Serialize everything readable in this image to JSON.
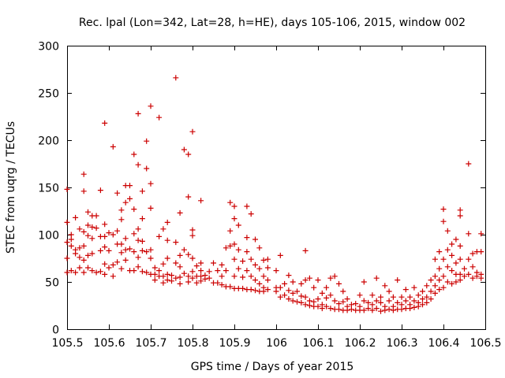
{
  "chart_data": {
    "type": "scatter",
    "title": "Rec. lpal (Lon=342, Lat=28, h=HE), days 105-106, 2015, window 002",
    "xlabel": "GPS time / Days of year 2015",
    "ylabel": "STEC from uqrg / TECUs",
    "xlim": [
      105.5,
      106.5
    ],
    "ylim": [
      0,
      300
    ],
    "xticks": [
      105.5,
      105.6,
      105.7,
      105.8,
      105.9,
      106,
      106.1,
      106.2,
      106.3,
      106.4,
      106.5
    ],
    "xtick_labels": [
      "105.5",
      "105.6",
      "105.7",
      "105.8",
      "105.9",
      "106",
      "106.1",
      "106.2",
      "106.3",
      "106.4",
      "106.5"
    ],
    "yticks": [
      0,
      50,
      100,
      150,
      200,
      250,
      300
    ],
    "ytick_labels": [
      "0",
      "50",
      "100",
      "150",
      "200",
      "250",
      "300"
    ],
    "grid": false,
    "marker": "+",
    "marker_color": "#cc0000",
    "points": [
      [
        105.5,
        148
      ],
      [
        105.5,
        113
      ],
      [
        105.5,
        92
      ],
      [
        105.5,
        75
      ],
      [
        105.5,
        60
      ],
      [
        105.51,
        100
      ],
      [
        105.51,
        95
      ],
      [
        105.51,
        88
      ],
      [
        105.51,
        62
      ],
      [
        105.52,
        118
      ],
      [
        105.52,
        84
      ],
      [
        105.52,
        80
      ],
      [
        105.52,
        60
      ],
      [
        105.53,
        106
      ],
      [
        105.53,
        86
      ],
      [
        105.53,
        76
      ],
      [
        105.53,
        65
      ],
      [
        105.54,
        164
      ],
      [
        105.54,
        146
      ],
      [
        105.54,
        103
      ],
      [
        105.54,
        88
      ],
      [
        105.54,
        73
      ],
      [
        105.54,
        60
      ],
      [
        105.55,
        124
      ],
      [
        105.55,
        110
      ],
      [
        105.55,
        99
      ],
      [
        105.55,
        78
      ],
      [
        105.55,
        65
      ],
      [
        105.56,
        120
      ],
      [
        105.56,
        108
      ],
      [
        105.56,
        96
      ],
      [
        105.56,
        80
      ],
      [
        105.56,
        62
      ],
      [
        105.57,
        120
      ],
      [
        105.57,
        107
      ],
      [
        105.57,
        60
      ],
      [
        105.58,
        147
      ],
      [
        105.58,
        98
      ],
      [
        105.58,
        83
      ],
      [
        105.58,
        61
      ],
      [
        105.59,
        218
      ],
      [
        105.59,
        111
      ],
      [
        105.59,
        98
      ],
      [
        105.59,
        87
      ],
      [
        105.59,
        69
      ],
      [
        105.59,
        58
      ],
      [
        105.6,
        102
      ],
      [
        105.6,
        83
      ],
      [
        105.6,
        65
      ],
      [
        105.61,
        193
      ],
      [
        105.61,
        100
      ],
      [
        105.61,
        68
      ],
      [
        105.61,
        56
      ],
      [
        105.62,
        144
      ],
      [
        105.62,
        104
      ],
      [
        105.62,
        90
      ],
      [
        105.62,
        71
      ],
      [
        105.63,
        126
      ],
      [
        105.63,
        116
      ],
      [
        105.63,
        90
      ],
      [
        105.63,
        81
      ],
      [
        105.63,
        64
      ],
      [
        105.64,
        152
      ],
      [
        105.64,
        134
      ],
      [
        105.64,
        96
      ],
      [
        105.64,
        84
      ],
      [
        105.64,
        73
      ],
      [
        105.65,
        152
      ],
      [
        105.65,
        138
      ],
      [
        105.65,
        85
      ],
      [
        105.65,
        62
      ],
      [
        105.66,
        185
      ],
      [
        105.66,
        127
      ],
      [
        105.66,
        101
      ],
      [
        105.66,
        82
      ],
      [
        105.66,
        62
      ],
      [
        105.67,
        228
      ],
      [
        105.67,
        174
      ],
      [
        105.67,
        106
      ],
      [
        105.67,
        94
      ],
      [
        105.67,
        76
      ],
      [
        105.67,
        66
      ],
      [
        105.68,
        146
      ],
      [
        105.68,
        117
      ],
      [
        105.68,
        93
      ],
      [
        105.68,
        83
      ],
      [
        105.68,
        61
      ],
      [
        105.69,
        199
      ],
      [
        105.69,
        170
      ],
      [
        105.69,
        82
      ],
      [
        105.69,
        60
      ],
      [
        105.7,
        236
      ],
      [
        105.7,
        154
      ],
      [
        105.7,
        128
      ],
      [
        105.7,
        84
      ],
      [
        105.7,
        75
      ],
      [
        105.7,
        58
      ],
      [
        105.71,
        65
      ],
      [
        105.71,
        58
      ],
      [
        105.71,
        52
      ],
      [
        105.72,
        224
      ],
      [
        105.72,
        98
      ],
      [
        105.72,
        62
      ],
      [
        105.72,
        56
      ],
      [
        105.73,
        106
      ],
      [
        105.73,
        69
      ],
      [
        105.73,
        56
      ],
      [
        105.73,
        49
      ],
      [
        105.74,
        113
      ],
      [
        105.74,
        94
      ],
      [
        105.74,
        75
      ],
      [
        105.74,
        58
      ],
      [
        105.74,
        52
      ],
      [
        105.75,
        57
      ],
      [
        105.75,
        51
      ],
      [
        105.76,
        266
      ],
      [
        105.76,
        92
      ],
      [
        105.76,
        70
      ],
      [
        105.76,
        54
      ],
      [
        105.77,
        123
      ],
      [
        105.77,
        78
      ],
      [
        105.77,
        66
      ],
      [
        105.77,
        55
      ],
      [
        105.77,
        48
      ],
      [
        105.78,
        190
      ],
      [
        105.78,
        84
      ],
      [
        105.78,
        59
      ],
      [
        105.79,
        185
      ],
      [
        105.79,
        140
      ],
      [
        105.79,
        79
      ],
      [
        105.79,
        56
      ],
      [
        105.79,
        50
      ],
      [
        105.8,
        209
      ],
      [
        105.8,
        105
      ],
      [
        105.8,
        99
      ],
      [
        105.8,
        75
      ],
      [
        105.8,
        61
      ],
      [
        105.8,
        54
      ],
      [
        105.81,
        67
      ],
      [
        105.81,
        56
      ],
      [
        105.81,
        49
      ],
      [
        105.82,
        136
      ],
      [
        105.82,
        70
      ],
      [
        105.82,
        62
      ],
      [
        105.82,
        56
      ],
      [
        105.82,
        51
      ],
      [
        105.83,
        57
      ],
      [
        105.83,
        53
      ],
      [
        105.84,
        61
      ],
      [
        105.84,
        54
      ],
      [
        105.85,
        70
      ],
      [
        105.85,
        49
      ],
      [
        105.86,
        62
      ],
      [
        105.86,
        49
      ],
      [
        105.87,
        68
      ],
      [
        105.87,
        56
      ],
      [
        105.87,
        47
      ],
      [
        105.88,
        86
      ],
      [
        105.88,
        62
      ],
      [
        105.88,
        45
      ],
      [
        105.89,
        134
      ],
      [
        105.89,
        104
      ],
      [
        105.89,
        88
      ],
      [
        105.89,
        45
      ],
      [
        105.9,
        130
      ],
      [
        105.9,
        117
      ],
      [
        105.9,
        90
      ],
      [
        105.9,
        74
      ],
      [
        105.9,
        56
      ],
      [
        105.9,
        43
      ],
      [
        105.91,
        110
      ],
      [
        105.91,
        84
      ],
      [
        105.91,
        64
      ],
      [
        105.91,
        43
      ],
      [
        105.92,
        72
      ],
      [
        105.92,
        55
      ],
      [
        105.92,
        43
      ],
      [
        105.93,
        130
      ],
      [
        105.93,
        97
      ],
      [
        105.93,
        82
      ],
      [
        105.93,
        62
      ],
      [
        105.93,
        42
      ],
      [
        105.94,
        122
      ],
      [
        105.94,
        74
      ],
      [
        105.94,
        56
      ],
      [
        105.94,
        42
      ],
      [
        105.95,
        95
      ],
      [
        105.95,
        68
      ],
      [
        105.95,
        52
      ],
      [
        105.95,
        41
      ],
      [
        105.96,
        86
      ],
      [
        105.96,
        64
      ],
      [
        105.96,
        48
      ],
      [
        105.96,
        40
      ],
      [
        105.97,
        73
      ],
      [
        105.97,
        56
      ],
      [
        105.97,
        44
      ],
      [
        105.97,
        40
      ],
      [
        105.98,
        74
      ],
      [
        105.98,
        65
      ],
      [
        105.98,
        52
      ],
      [
        105.98,
        42
      ],
      [
        106.0,
        62
      ],
      [
        106.0,
        44
      ],
      [
        106.0,
        40
      ],
      [
        106.01,
        78
      ],
      [
        106.01,
        44
      ],
      [
        106.01,
        34
      ],
      [
        106.02,
        48
      ],
      [
        106.02,
        36
      ],
      [
        106.03,
        57
      ],
      [
        106.03,
        41
      ],
      [
        106.03,
        32
      ],
      [
        106.04,
        50
      ],
      [
        106.04,
        38
      ],
      [
        106.04,
        30
      ],
      [
        106.05,
        40
      ],
      [
        106.05,
        29
      ],
      [
        106.06,
        48
      ],
      [
        106.06,
        35
      ],
      [
        106.06,
        28
      ],
      [
        106.07,
        83
      ],
      [
        106.07,
        52
      ],
      [
        106.07,
        34
      ],
      [
        106.07,
        26
      ],
      [
        106.08,
        54
      ],
      [
        106.08,
        30
      ],
      [
        106.08,
        25
      ],
      [
        106.09,
        44
      ],
      [
        106.09,
        29
      ],
      [
        106.09,
        24
      ],
      [
        106.1,
        52
      ],
      [
        106.1,
        32
      ],
      [
        106.1,
        24
      ],
      [
        106.11,
        38
      ],
      [
        106.11,
        26
      ],
      [
        106.11,
        22
      ],
      [
        106.12,
        44
      ],
      [
        106.12,
        33
      ],
      [
        106.12,
        24
      ],
      [
        106.13,
        54
      ],
      [
        106.13,
        36
      ],
      [
        106.13,
        22
      ],
      [
        106.14,
        56
      ],
      [
        106.14,
        30
      ],
      [
        106.14,
        21
      ],
      [
        106.15,
        48
      ],
      [
        106.15,
        27
      ],
      [
        106.15,
        21
      ],
      [
        106.16,
        40
      ],
      [
        106.16,
        29
      ],
      [
        106.16,
        20
      ],
      [
        106.17,
        32
      ],
      [
        106.17,
        24
      ],
      [
        106.17,
        20
      ],
      [
        106.18,
        26
      ],
      [
        106.18,
        21
      ],
      [
        106.19,
        27
      ],
      [
        106.19,
        20
      ],
      [
        106.2,
        36
      ],
      [
        106.2,
        24
      ],
      [
        106.2,
        20
      ],
      [
        106.21,
        50
      ],
      [
        106.21,
        30
      ],
      [
        106.21,
        20
      ],
      [
        106.22,
        28
      ],
      [
        106.22,
        22
      ],
      [
        106.23,
        36
      ],
      [
        106.23,
        26
      ],
      [
        106.23,
        20
      ],
      [
        106.24,
        54
      ],
      [
        106.24,
        30
      ],
      [
        106.24,
        22
      ],
      [
        106.25,
        34
      ],
      [
        106.25,
        28
      ],
      [
        106.25,
        19
      ],
      [
        106.26,
        46
      ],
      [
        106.26,
        24
      ],
      [
        106.26,
        20
      ],
      [
        106.27,
        40
      ],
      [
        106.27,
        30
      ],
      [
        106.27,
        21
      ],
      [
        106.28,
        34
      ],
      [
        106.28,
        24
      ],
      [
        106.28,
        20
      ],
      [
        106.29,
        52
      ],
      [
        106.29,
        28
      ],
      [
        106.29,
        21
      ],
      [
        106.3,
        34
      ],
      [
        106.3,
        26
      ],
      [
        106.3,
        21
      ],
      [
        106.31,
        42
      ],
      [
        106.31,
        30
      ],
      [
        106.31,
        22
      ],
      [
        106.32,
        34
      ],
      [
        106.32,
        26
      ],
      [
        106.32,
        22
      ],
      [
        106.33,
        44
      ],
      [
        106.33,
        30
      ],
      [
        106.33,
        23
      ],
      [
        106.34,
        36
      ],
      [
        106.34,
        28
      ],
      [
        106.34,
        24
      ],
      [
        106.35,
        40
      ],
      [
        106.35,
        32
      ],
      [
        106.35,
        26
      ],
      [
        106.36,
        46
      ],
      [
        106.36,
        34
      ],
      [
        106.36,
        28
      ],
      [
        106.37,
        52
      ],
      [
        106.37,
        40
      ],
      [
        106.37,
        32
      ],
      [
        106.38,
        74
      ],
      [
        106.38,
        56
      ],
      [
        106.38,
        46
      ],
      [
        106.38,
        38
      ],
      [
        106.39,
        82
      ],
      [
        106.39,
        64
      ],
      [
        106.39,
        52
      ],
      [
        106.39,
        42
      ],
      [
        106.4,
        127
      ],
      [
        106.4,
        114
      ],
      [
        106.4,
        74
      ],
      [
        106.4,
        56
      ],
      [
        106.4,
        44
      ],
      [
        106.41,
        104
      ],
      [
        106.41,
        84
      ],
      [
        106.41,
        66
      ],
      [
        106.41,
        50
      ],
      [
        106.42,
        90
      ],
      [
        106.42,
        78
      ],
      [
        106.42,
        62
      ],
      [
        106.42,
        48
      ],
      [
        106.43,
        95
      ],
      [
        106.43,
        70
      ],
      [
        106.43,
        58
      ],
      [
        106.43,
        50
      ],
      [
        106.44,
        126
      ],
      [
        106.44,
        120
      ],
      [
        106.44,
        88
      ],
      [
        106.44,
        74
      ],
      [
        106.44,
        58
      ],
      [
        106.44,
        52
      ],
      [
        106.45,
        64
      ],
      [
        106.45,
        56
      ],
      [
        106.46,
        175
      ],
      [
        106.46,
        101
      ],
      [
        106.46,
        74
      ],
      [
        106.46,
        58
      ],
      [
        106.47,
        80
      ],
      [
        106.47,
        66
      ],
      [
        106.47,
        54
      ],
      [
        106.48,
        82
      ],
      [
        106.48,
        60
      ],
      [
        106.48,
        56
      ],
      [
        106.49,
        101
      ],
      [
        106.49,
        82
      ],
      [
        106.49,
        58
      ],
      [
        106.49,
        54
      ]
    ]
  }
}
